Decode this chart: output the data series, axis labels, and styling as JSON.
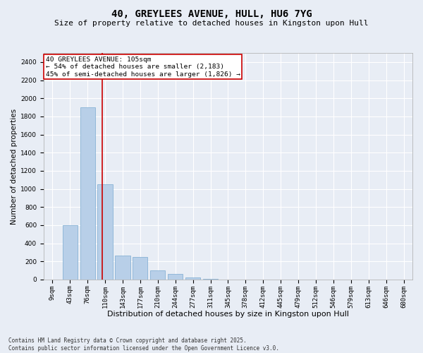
{
  "title": "40, GREYLEES AVENUE, HULL, HU6 7YG",
  "subtitle": "Size of property relative to detached houses in Kingston upon Hull",
  "xlabel": "Distribution of detached houses by size in Kingston upon Hull",
  "ylabel": "Number of detached properties",
  "categories": [
    "9sqm",
    "43sqm",
    "76sqm",
    "110sqm",
    "143sqm",
    "177sqm",
    "210sqm",
    "244sqm",
    "277sqm",
    "311sqm",
    "345sqm",
    "378sqm",
    "412sqm",
    "445sqm",
    "479sqm",
    "512sqm",
    "546sqm",
    "579sqm",
    "613sqm",
    "646sqm",
    "680sqm"
  ],
  "values": [
    0,
    600,
    1900,
    1050,
    265,
    245,
    100,
    60,
    25,
    8,
    2,
    0,
    0,
    0,
    0,
    0,
    0,
    0,
    0,
    0,
    0
  ],
  "bar_color": "#b8cfe8",
  "bar_edge_color": "#7aaad0",
  "vline_x_index": 2.85,
  "vline_color": "#cc0000",
  "annotation_text": "40 GREYLEES AVENUE: 105sqm\n← 54% of detached houses are smaller (2,183)\n45% of semi-detached houses are larger (1,826) →",
  "annotation_box_color": "#ffffff",
  "annotation_box_edge_color": "#cc0000",
  "ylim": [
    0,
    2500
  ],
  "yticks": [
    0,
    200,
    400,
    600,
    800,
    1000,
    1200,
    1400,
    1600,
    1800,
    2000,
    2200,
    2400
  ],
  "background_color": "#e8edf5",
  "plot_background_color": "#e8edf5",
  "grid_color": "#ffffff",
  "footnote": "Contains HM Land Registry data © Crown copyright and database right 2025.\nContains public sector information licensed under the Open Government Licence v3.0.",
  "title_fontsize": 10,
  "subtitle_fontsize": 8,
  "xlabel_fontsize": 8,
  "ylabel_fontsize": 7.5,
  "tick_fontsize": 6.5,
  "annotation_fontsize": 6.8,
  "footnote_fontsize": 5.5
}
